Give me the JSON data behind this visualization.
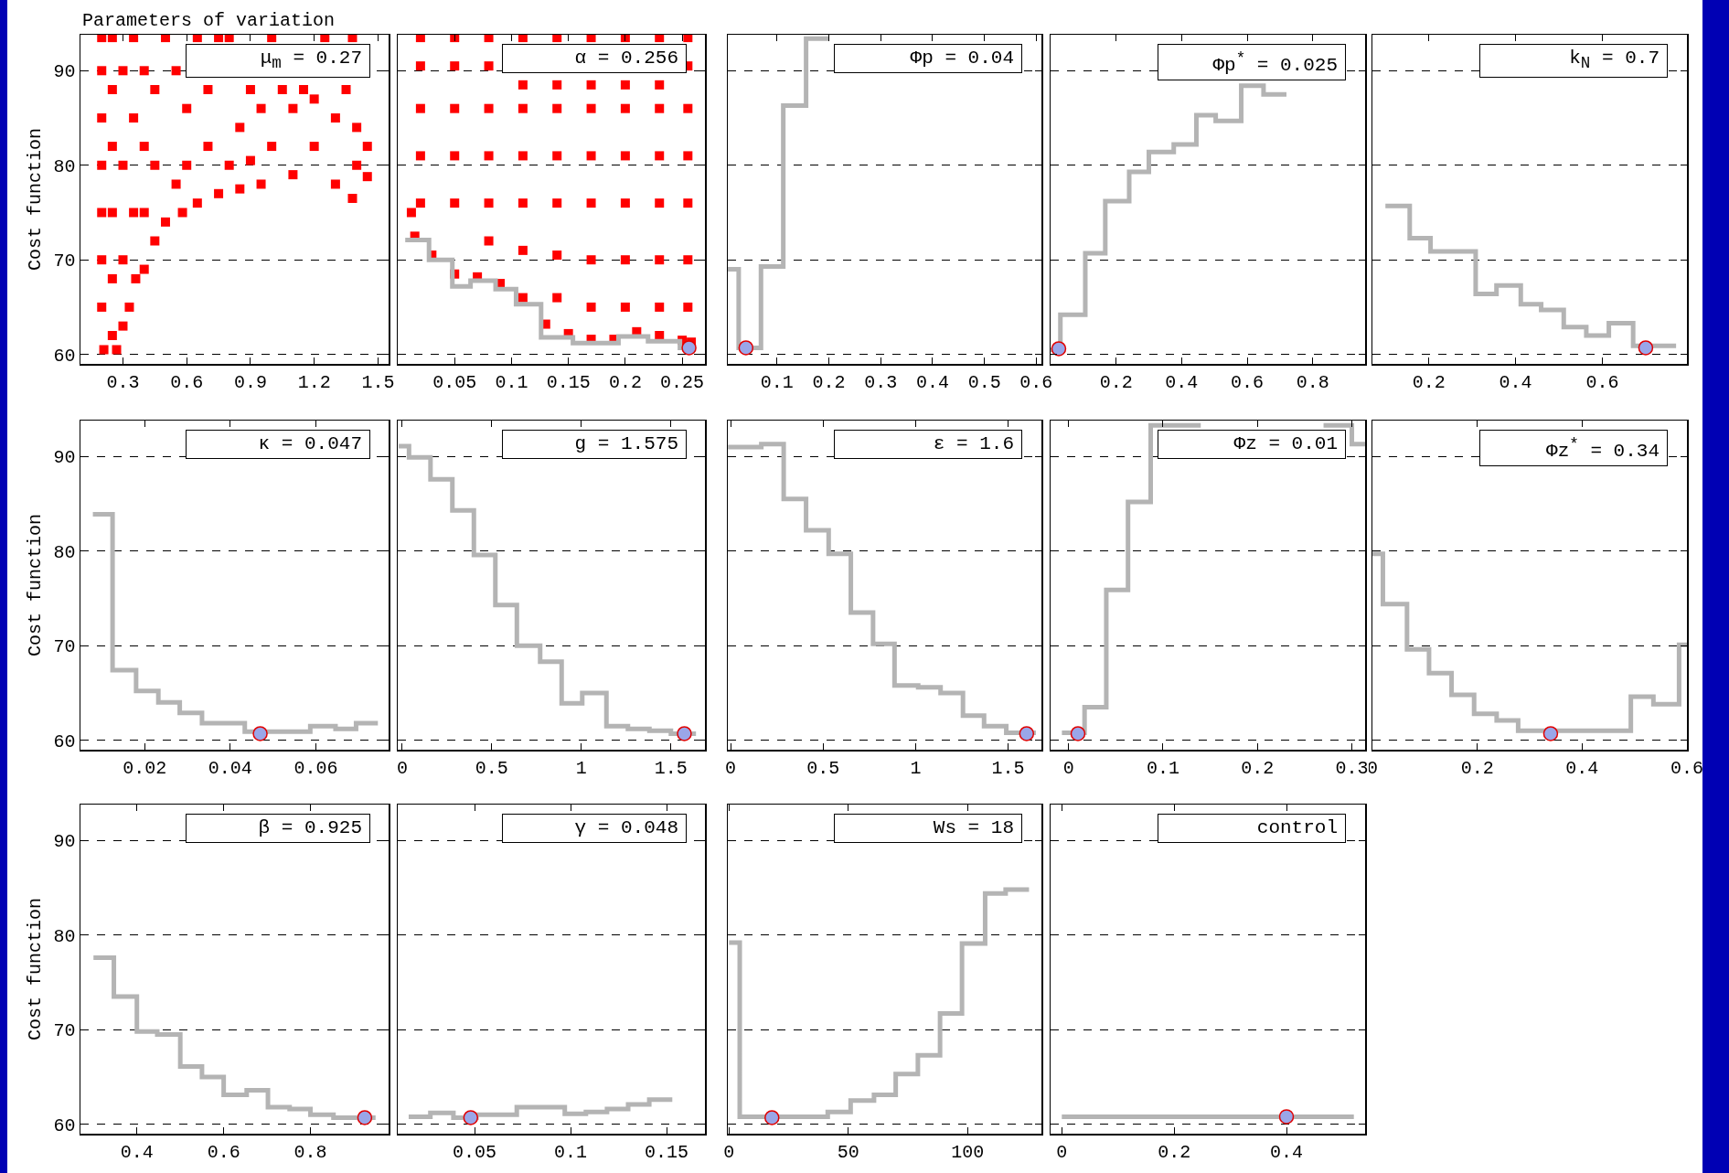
{
  "chart_data": [
    {
      "type": "scatter",
      "title": "μ$_{m}$ = 0.27",
      "ylabel": "Cost function",
      "annotations": [
        "Parameters of variation"
      ],
      "xlim": [
        0.1,
        1.55
      ],
      "xticks": [
        0.3,
        0.6,
        0.9,
        1.2,
        1.5
      ],
      "ylim": [
        59,
        93.8
      ],
      "yticks": [
        60,
        70,
        80,
        90
      ],
      "grid": "y",
      "series": [
        {
          "marker": "square",
          "color": "#ff0000",
          "x": [
            0.21,
            0.27,
            0.3,
            0.33,
            0.36,
            0.4,
            0.45,
            0.5,
            0.58,
            0.65,
            0.75,
            0.85,
            0.95,
            1.1,
            1.3,
            1.38,
            1.45,
            1.4,
            0.2,
            0.2,
            0.2,
            0.2,
            0.2,
            0.2,
            0.2,
            0.25,
            0.25,
            0.25,
            0.25,
            0.25,
            0.25,
            0.35,
            0.35,
            0.35,
            0.45,
            0.45,
            0.5,
            0.6,
            0.6,
            0.7,
            0.7,
            0.75,
            0.85,
            0.9,
            1.0,
            1.0,
            1.1,
            1.15,
            1.2,
            1.25,
            1.3,
            1.35,
            1.4,
            1.38,
            0.3,
            0.3,
            0.3,
            0.4,
            0.4,
            0.4,
            0.55,
            0.55,
            0.8,
            0.8,
            0.95,
            1.05,
            1.2,
            1.45,
            0.65,
            0.9
          ],
          "values": [
            60.5,
            60.5,
            63,
            65,
            68,
            69,
            72,
            74,
            75,
            76,
            77,
            77.5,
            78,
            79,
            78,
            76.5,
            78.8,
            80,
            65,
            70,
            75,
            80,
            85,
            90,
            93.5,
            62,
            68,
            75,
            82,
            88,
            93.5,
            75,
            85,
            93.5,
            80,
            88,
            93.5,
            80,
            86,
            82,
            88,
            93.5,
            84,
            88,
            82,
            93.5,
            86,
            88,
            82,
            93.5,
            85,
            88,
            84,
            93.5,
            70,
            80,
            90,
            75,
            82,
            90,
            78,
            90,
            80,
            93.5,
            86,
            88,
            87,
            82,
            93.5,
            80.5
          ]
        }
      ]
    },
    {
      "type": "step",
      "title": "α = 0.256",
      "tick_labels": "x",
      "xlim": [
        0,
        0.27
      ],
      "xticks": [
        0.05,
        0.1,
        0.15,
        0.2,
        0.25
      ],
      "ylim": [
        59,
        93.8
      ],
      "yticks": [
        60,
        70,
        80,
        90
      ],
      "grid": "y",
      "series": [
        {
          "type": "scatter",
          "marker": "square",
          "color": "#ff0000",
          "x": [
            0.012,
            0.015,
            0.03,
            0.05,
            0.07,
            0.09,
            0.11,
            0.13,
            0.15,
            0.17,
            0.19,
            0.21,
            0.23,
            0.25,
            0.258,
            0.02,
            0.02,
            0.02,
            0.02,
            0.02,
            0.05,
            0.05,
            0.05,
            0.05,
            0.05,
            0.08,
            0.08,
            0.08,
            0.08,
            0.08,
            0.11,
            0.11,
            0.11,
            0.11,
            0.11,
            0.14,
            0.14,
            0.14,
            0.14,
            0.14,
            0.17,
            0.17,
            0.17,
            0.17,
            0.17,
            0.2,
            0.2,
            0.2,
            0.2,
            0.2,
            0.23,
            0.23,
            0.23,
            0.23,
            0.23,
            0.255,
            0.255,
            0.255,
            0.255,
            0.255,
            0.14,
            0.17,
            0.2,
            0.23,
            0.255,
            0.17,
            0.2,
            0.23,
            0.255,
            0.08,
            0.11,
            0.14
          ],
          "values": [
            75,
            72.5,
            70.5,
            68.5,
            68.2,
            67.5,
            66,
            63.2,
            62.2,
            61.6,
            61.6,
            62.4,
            62,
            61.5,
            61.3,
            76,
            81,
            86,
            90.5,
            93.5,
            76,
            81,
            86,
            90.5,
            93.5,
            76,
            81,
            86,
            90.5,
            93.5,
            76,
            81,
            86,
            88.5,
            93.5,
            76,
            81,
            86,
            88.5,
            93.5,
            76,
            81,
            86,
            88.5,
            93.5,
            76,
            81,
            86,
            88.5,
            93.5,
            76,
            81,
            86,
            88.5,
            93.5,
            76,
            81,
            86,
            90.5,
            93.5,
            66,
            65,
            65,
            65,
            65,
            70,
            70,
            70,
            70,
            72,
            71,
            70.5
          ]
        },
        {
          "color": "#b4b4b4",
          "x": [
            0.0066,
            0.0275,
            0.048,
            0.064,
            0.086,
            0.104,
            0.126,
            0.154,
            0.194,
            0.22,
            0.248,
            0.256
          ],
          "values": [
            72.1,
            70.0,
            67.2,
            67.8,
            66.9,
            65.3,
            61.8,
            61.2,
            61.9,
            61.4,
            60.7,
            60.7
          ]
        },
        {
          "type": "scatter",
          "marker": "circle",
          "color": "#9aa6e8",
          "x": [
            0.256
          ],
          "values": [
            60.7
          ]
        }
      ]
    },
    {
      "type": "step",
      "title": "Φp = 0.04",
      "tick_labels": "x",
      "xlim": [
        0.005,
        0.61
      ],
      "xticks": [
        0.1,
        0.2,
        0.3,
        0.4,
        0.5,
        0.6
      ],
      "ylim": [
        59,
        93.8
      ],
      "yticks": [
        60,
        70,
        80,
        90
      ],
      "grid": "y",
      "series": [
        {
          "color": "#b4b4b4",
          "x": [
            0.005,
            0.026,
            0.069,
            0.112,
            0.156,
            0.2
          ],
          "values": [
            69,
            60.7,
            69.3,
            86.3,
            93.4,
            93.4
          ]
        },
        {
          "type": "scatter",
          "marker": "circle",
          "color": "#9aa6e8",
          "x": [
            0.04
          ],
          "values": [
            60.7
          ]
        }
      ]
    },
    {
      "type": "step",
      "title": "Φp$^{*}$ = 0.025",
      "tick_labels": "x",
      "xlim": [
        0,
        0.96
      ],
      "xticks": [
        0.2,
        0.4,
        0.6,
        0.8
      ],
      "ylim": [
        59,
        93.8
      ],
      "yticks": [
        60,
        70,
        80,
        90
      ],
      "grid": "y",
      "series": [
        {
          "color": "#b4b4b4",
          "x": [
            0,
            0.03,
            0.106,
            0.167,
            0.24,
            0.3,
            0.376,
            0.445,
            0.504,
            0.582,
            0.65,
            0.72
          ],
          "values": [
            60.5,
            64.2,
            70.7,
            76.2,
            79.3,
            81.4,
            82.2,
            85.3,
            84.7,
            88.4,
            87.5,
            87.5
          ]
        },
        {
          "type": "scatter",
          "marker": "circle",
          "color": "#9aa6e8",
          "x": [
            0.025
          ],
          "values": [
            60.6
          ]
        }
      ]
    },
    {
      "type": "step",
      "title": "k$_{N}$ = 0.7",
      "tick_labels": "x",
      "xlim": [
        0.07,
        0.795
      ],
      "xticks": [
        0.2,
        0.4,
        0.6
      ],
      "ylim": [
        59,
        93.8
      ],
      "yticks": [
        60,
        70,
        80,
        90
      ],
      "grid": "y",
      "series": [
        {
          "color": "#b4b4b4",
          "x": [
            0.1,
            0.156,
            0.204,
            0.308,
            0.356,
            0.412,
            0.459,
            0.511,
            0.563,
            0.615,
            0.671,
            0.77
          ],
          "values": [
            75.7,
            72.3,
            70.9,
            66.4,
            67.3,
            65.3,
            64.7,
            62.9,
            62.0,
            63.3,
            60.9,
            60.9
          ]
        },
        {
          "type": "scatter",
          "marker": "circle",
          "color": "#9aa6e8",
          "x": [
            0.7
          ],
          "values": [
            60.7
          ]
        }
      ]
    },
    {
      "type": "step",
      "title": "κ = 0.047",
      "ylabel": "Cost function",
      "xlim": [
        0.005,
        0.077
      ],
      "xticks": [
        0.02,
        0.04,
        0.06
      ],
      "ylim": [
        59,
        93.8
      ],
      "yticks": [
        60,
        70,
        80,
        90
      ],
      "grid": "y",
      "series": [
        {
          "color": "#b4b4b4",
          "x": [
            0.0079,
            0.0125,
            0.018,
            0.0232,
            0.0282,
            0.0334,
            0.0434,
            0.0587,
            0.0646,
            0.0694,
            0.0745
          ],
          "values": [
            83.9,
            67.4,
            65.2,
            64.0,
            62.9,
            61.8,
            60.9,
            61.5,
            61.2,
            61.8,
            61.8
          ]
        },
        {
          "type": "scatter",
          "marker": "circle",
          "color": "#9aa6e8",
          "x": [
            0.047
          ],
          "values": [
            60.7
          ]
        }
      ]
    },
    {
      "type": "step",
      "title": "g = 1.575",
      "tick_labels": "x",
      "xlim": [
        -0.025,
        1.69
      ],
      "xticks": [
        0,
        0.5,
        1,
        1.5
      ],
      "ylim": [
        59,
        93.8
      ],
      "yticks": [
        60,
        70,
        80,
        90
      ],
      "grid": "y",
      "series": [
        {
          "color": "#b4b4b4",
          "x": [
            -0.02,
            0.038,
            0.158,
            0.28,
            0.4,
            0.52,
            0.64,
            0.77,
            0.89,
            1.005,
            1.14,
            1.26,
            1.38,
            1.5,
            1.64
          ],
          "values": [
            91.1,
            89.9,
            87.6,
            84.3,
            79.6,
            74.3,
            70.0,
            68.3,
            63.9,
            65.0,
            61.5,
            61.2,
            61.0,
            60.7,
            60.7
          ]
        },
        {
          "type": "scatter",
          "marker": "circle",
          "color": "#9aa6e8",
          "x": [
            1.575
          ],
          "values": [
            60.7
          ]
        }
      ]
    },
    {
      "type": "step",
      "title": "ε = 1.6",
      "tick_labels": "x",
      "xlim": [
        -0.015,
        1.68
      ],
      "xticks": [
        0,
        0.5,
        1,
        1.5
      ],
      "ylim": [
        59,
        93.8
      ],
      "yticks": [
        60,
        70,
        80,
        90
      ],
      "grid": "y",
      "series": [
        {
          "color": "#b4b4b4",
          "x": [
            -0.014,
            0.166,
            0.287,
            0.408,
            0.53,
            0.65,
            0.77,
            0.886,
            1.014,
            1.135,
            1.256,
            1.37,
            1.49,
            1.65
          ],
          "values": [
            91.0,
            91.3,
            85.5,
            82.2,
            79.7,
            73.5,
            70.2,
            65.8,
            65.6,
            65.0,
            62.6,
            61.5,
            60.8,
            60.8
          ]
        },
        {
          "type": "scatter",
          "marker": "circle",
          "color": "#9aa6e8",
          "x": [
            1.6
          ],
          "values": [
            60.7
          ]
        }
      ]
    },
    {
      "type": "step",
      "title": "Φz = 0.01",
      "tick_labels": "x",
      "xlim": [
        -0.019,
        0.314
      ],
      "xticks": [
        0,
        0.1,
        0.2,
        0.3
      ],
      "ylim": [
        59,
        93.8
      ],
      "yticks": [
        60,
        70,
        80,
        90
      ],
      "grid": "y",
      "series": [
        {
          "color": "#b4b4b4",
          "x": [
            -0.007,
            0.017,
            0.04,
            0.063,
            0.087,
            0.14
          ],
          "values": [
            60.8,
            63.5,
            75.9,
            85.2,
            93.3,
            93.3
          ]
        },
        {
          "color": "#b4b4b4",
          "x": [
            0.27,
            0.3,
            0.314
          ],
          "values": [
            93.3,
            91.3,
            91.3
          ]
        },
        {
          "type": "scatter",
          "marker": "circle",
          "color": "#9aa6e8",
          "x": [
            0.01
          ],
          "values": [
            60.7
          ]
        }
      ]
    },
    {
      "type": "step",
      "title": "Φz$^{*}$ = 0.34",
      "tick_labels": "x",
      "xlim": [
        0,
        0.6
      ],
      "xticks": [
        0,
        0.2,
        0.4,
        0.6
      ],
      "ylim": [
        59,
        93.8
      ],
      "yticks": [
        60,
        70,
        80,
        90
      ],
      "grid": "y",
      "series": [
        {
          "color": "#b4b4b4",
          "x": [
            0,
            0.02,
            0.066,
            0.108,
            0.151,
            0.194,
            0.237,
            0.278,
            0.493,
            0.536,
            0.585,
            0.6
          ],
          "values": [
            79.7,
            74.4,
            69.6,
            67.1,
            64.8,
            62.8,
            62.1,
            61.0,
            64.6,
            63.8,
            70.1,
            70.1
          ]
        },
        {
          "type": "scatter",
          "marker": "circle",
          "color": "#9aa6e8",
          "x": [
            0.34
          ],
          "values": [
            60.7
          ]
        }
      ]
    },
    {
      "type": "step",
      "title": "β = 0.925",
      "ylabel": "Cost function",
      "xlim": [
        0.27,
        0.98
      ],
      "xticks": [
        0.4,
        0.6,
        0.8
      ],
      "ylim": [
        59,
        93.8
      ],
      "yticks": [
        60,
        70,
        80,
        90
      ],
      "grid": "y",
      "series": [
        {
          "color": "#b4b4b4",
          "x": [
            0.3,
            0.347,
            0.4,
            0.447,
            0.5,
            0.55,
            0.6,
            0.653,
            0.702,
            0.752,
            0.8,
            0.853,
            0.95
          ],
          "values": [
            77.6,
            73.5,
            69.8,
            69.5,
            66.1,
            65.0,
            63.1,
            63.6,
            61.8,
            61.6,
            61.0,
            60.7,
            60.7
          ]
        },
        {
          "type": "scatter",
          "marker": "circle",
          "color": "#9aa6e8",
          "x": [
            0.925
          ],
          "values": [
            60.7
          ]
        }
      ]
    },
    {
      "type": "step",
      "title": "γ = 0.048",
      "tick_labels": "x",
      "xlim": [
        0.01,
        0.17
      ],
      "xticks": [
        0.05,
        0.1,
        0.15
      ],
      "ylim": [
        59,
        93.8
      ],
      "yticks": [
        60,
        70,
        80,
        90
      ],
      "grid": "y",
      "series": [
        {
          "color": "#b4b4b4",
          "x": [
            0.0157,
            0.027,
            0.039,
            0.051,
            0.072,
            0.097,
            0.108,
            0.119,
            0.13,
            0.141,
            0.153
          ],
          "values": [
            60.8,
            61.2,
            60.7,
            61.0,
            61.8,
            61.1,
            61.3,
            61.6,
            62.1,
            62.6,
            62.6
          ]
        },
        {
          "type": "scatter",
          "marker": "circle",
          "color": "#9aa6e8",
          "x": [
            0.048
          ],
          "values": [
            60.7
          ]
        }
      ]
    },
    {
      "type": "step",
      "title": "Ws = 18",
      "tick_labels": "x",
      "xlim": [
        -0.5,
        131
      ],
      "xticks": [
        0,
        50,
        100
      ],
      "ylim": [
        59,
        93.8
      ],
      "yticks": [
        60,
        70,
        80,
        90
      ],
      "grid": "y",
      "series": [
        {
          "color": "#b4b4b4",
          "x": [
            0,
            4.5,
            41.4,
            51,
            60.8,
            69.9,
            79.2,
            88.5,
            97.7,
            107.4,
            116,
            125.8
          ],
          "values": [
            79.2,
            60.8,
            61.3,
            62.5,
            63.1,
            65.3,
            67.3,
            71.7,
            79.1,
            84.4,
            84.8,
            84.8
          ]
        },
        {
          "type": "scatter",
          "marker": "circle",
          "color": "#9aa6e8",
          "x": [
            18
          ],
          "values": [
            60.7
          ]
        }
      ]
    },
    {
      "type": "step",
      "title": "control",
      "tick_labels": "x",
      "xlim": [
        -0.02,
        0.54
      ],
      "xticks": [
        0,
        0.2,
        0.4
      ],
      "ylim": [
        59,
        93.8
      ],
      "yticks": [
        60,
        70,
        80,
        90
      ],
      "grid": "y",
      "series": [
        {
          "color": "#b4b4b4",
          "x": [
            0,
            0.52
          ],
          "values": [
            60.8,
            60.8
          ]
        },
        {
          "type": "scatter",
          "marker": "circle",
          "color": "#9aa6e8",
          "x": [
            0.4
          ],
          "values": [
            60.8
          ]
        }
      ]
    }
  ]
}
